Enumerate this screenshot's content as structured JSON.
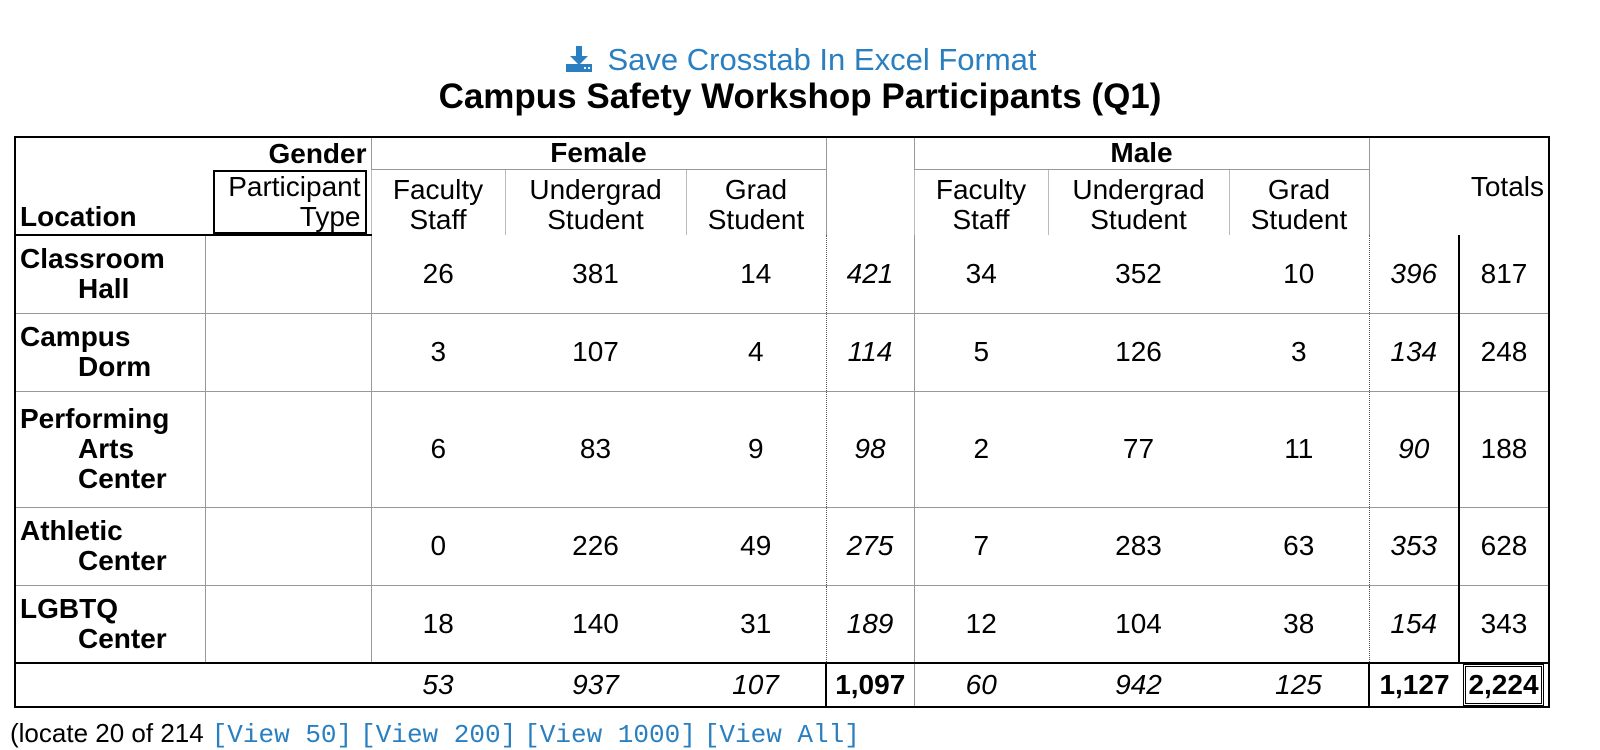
{
  "save_link": {
    "label": "Save Crosstab In Excel Format",
    "icon": "download-icon",
    "color": "#2a7fc0"
  },
  "title": "Campus Safety Workshop Participants (Q1)",
  "header": {
    "gender_label": "Gender",
    "participant_type_label": "Participant Type",
    "location_label": "Location",
    "totals_label": "Totals",
    "groups": [
      {
        "label": "Female",
        "subs": [
          "Faculty Staff",
          "Undergrad Student",
          "Grad Student"
        ]
      },
      {
        "label": "Male",
        "subs": [
          "Faculty Staff",
          "Undergrad Student",
          "Grad Student"
        ]
      }
    ]
  },
  "rows": [
    {
      "location": [
        "Classroom",
        "Hall"
      ],
      "female": [
        "26",
        "381",
        "14"
      ],
      "female_sub": "421",
      "male": [
        "34",
        "352",
        "10"
      ],
      "male_sub": "396",
      "total": "817"
    },
    {
      "location": [
        "Campus",
        "Dorm"
      ],
      "female": [
        "3",
        "107",
        "4"
      ],
      "female_sub": "114",
      "male": [
        "5",
        "126",
        "3"
      ],
      "male_sub": "134",
      "total": "248"
    },
    {
      "location": [
        "Performing",
        "Arts",
        "Center"
      ],
      "female": [
        "6",
        "83",
        "9"
      ],
      "female_sub": "98",
      "male": [
        "2",
        "77",
        "11"
      ],
      "male_sub": "90",
      "total": "188"
    },
    {
      "location": [
        "Athletic",
        "Center"
      ],
      "female": [
        "0",
        "226",
        "49"
      ],
      "female_sub": "275",
      "male": [
        "7",
        "283",
        "63"
      ],
      "male_sub": "353",
      "total": "628"
    },
    {
      "location": [
        "LGBTQ",
        "Center"
      ],
      "female": [
        "18",
        "140",
        "31"
      ],
      "female_sub": "189",
      "male": [
        "12",
        "104",
        "38"
      ],
      "male_sub": "154",
      "total": "343"
    }
  ],
  "footer": {
    "female": [
      "53",
      "937",
      "107"
    ],
    "female_sub": "1,097",
    "male": [
      "60",
      "942",
      "125"
    ],
    "male_sub": "1,127",
    "grand_total": "2,224"
  },
  "pager": {
    "text": "(locate 20 of 214",
    "links": [
      "[View 50]",
      "[View 200]",
      "[View 1000]",
      "[View All]"
    ]
  }
}
